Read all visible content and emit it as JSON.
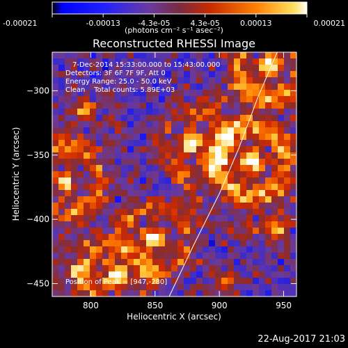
{
  "chart_data": {
    "type": "heatmap",
    "title": "Reconstructed RHESSI Image",
    "xlabel": "Heliocentric X (arcsec)",
    "ylabel": "Heliocentric Y (arcsec)",
    "xlim": [
      770,
      960
    ],
    "ylim": [
      -460,
      -270
    ],
    "xticks": [
      800,
      850,
      900,
      950
    ],
    "yticks": [
      -300,
      -350,
      -400,
      -450
    ],
    "colorbar": {
      "range": [
        -0.00021,
        0.00021
      ],
      "tick_labels": [
        "-0.00021",
        "-0.00013",
        "-4.3e-05",
        "4.3e-05",
        "0.00013",
        "0.00021"
      ],
      "units_label": "(photons cm⁻² s⁻¹ asec⁻²)"
    },
    "annotations": [
      "7-Dec-2014 15:33:00.000 to 15:43:00.000",
      "Detectors: 3F 6F 7F 9F, Att 0",
      "Energy Range: 25.0 - 50.0 keV",
      "Clean    Total counts: 5.89E+03"
    ],
    "peak_label": "Position of Peak = [947,-280]",
    "peak": [
      947,
      -280
    ],
    "limb": [
      [
        861,
        -460
      ],
      [
        880,
        -420
      ],
      [
        900,
        -380
      ],
      [
        915,
        -345
      ],
      [
        930,
        -305
      ],
      [
        945,
        -270
      ]
    ],
    "bright_sources": [
      {
        "x": 940,
        "y": -280,
        "r": 22,
        "v": 1.0
      },
      {
        "x": 925,
        "y": -355,
        "r": 30,
        "v": 0.95
      },
      {
        "x": 880,
        "y": -340,
        "r": 18,
        "v": 0.85
      },
      {
        "x": 780,
        "y": -370,
        "r": 25,
        "v": 0.85
      },
      {
        "x": 795,
        "y": -315,
        "r": 12,
        "v": 0.6
      },
      {
        "x": 850,
        "y": -415,
        "r": 20,
        "v": 0.9
      },
      {
        "x": 820,
        "y": -445,
        "r": 18,
        "v": 0.85
      },
      {
        "x": 790,
        "y": -440,
        "r": 15,
        "v": 0.7
      },
      {
        "x": 905,
        "y": -450,
        "r": 12,
        "v": 0.6
      },
      {
        "x": 945,
        "y": -405,
        "r": 12,
        "v": 0.55
      }
    ],
    "colors": [
      "#000000",
      "#1010ff",
      "#3c2cc8",
      "#6a3a9a",
      "#8a2c2c",
      "#d02a00",
      "#ff7a00",
      "#ffd040",
      "#ffffff"
    ]
  },
  "timestamp": "22-Aug-2017 21:03"
}
